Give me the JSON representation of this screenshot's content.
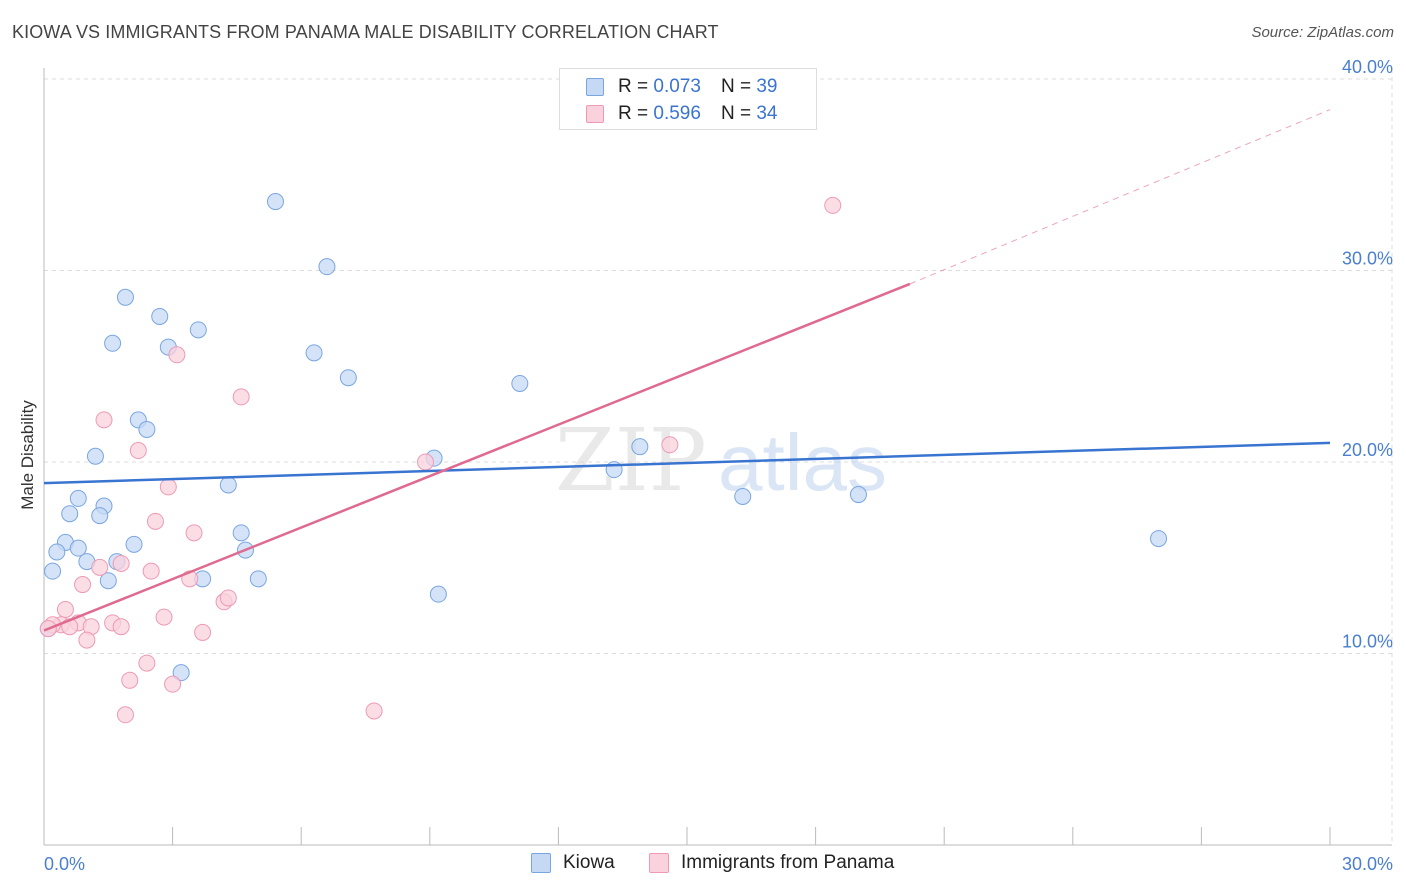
{
  "title": "KIOWA VS IMMIGRANTS FROM PANAMA MALE DISABILITY CORRELATION CHART",
  "source": "Source: ZipAtlas.com",
  "watermark": {
    "zip": "ZIP",
    "atlas": "atlas"
  },
  "legend": {
    "items": [
      {
        "r_label": "R =",
        "r_value": "0.073",
        "n_label": "N =",
        "n_value": "39"
      },
      {
        "r_label": "R =",
        "r_value": "0.596",
        "n_label": "N =",
        "n_value": "34"
      }
    ]
  },
  "bottom_legend": {
    "kiowa": "Kiowa",
    "panama": "Immigrants from Panama"
  },
  "colors": {
    "kiowa_fill": "#c5d9f5",
    "kiowa_stroke": "#7aa6e0",
    "kiowa_line": "#3874d0",
    "panama_fill": "#f9d2de",
    "panama_stroke": "#ee9ab4",
    "panama_line": "#e0698f",
    "tick_text": "#4a7fcf"
  },
  "chart_data": {
    "type": "scatter",
    "title": "KIOWA VS IMMIGRANTS FROM PANAMA MALE DISABILITY CORRELATION CHART",
    "xlabel": "",
    "ylabel": "Male Disability",
    "xlim": [
      0,
      30
    ],
    "ylim": [
      0,
      40
    ],
    "x_tick_labels": [
      "0.0%",
      "30.0%"
    ],
    "y_ticks": [
      10,
      20,
      30,
      40
    ],
    "y_tick_labels": [
      "10.0%",
      "20.0%",
      "30.0%",
      "40.0%"
    ],
    "grid": true,
    "legend_position": "top-center",
    "series": [
      {
        "name": "Kiowa",
        "r": 0.073,
        "n": 39,
        "trend": {
          "x0": 0,
          "y0": 18.9,
          "x1": 30,
          "y1": 21.0,
          "style": "solid"
        },
        "points": [
          [
            5.4,
            33.6
          ],
          [
            6.6,
            30.2
          ],
          [
            1.9,
            28.6
          ],
          [
            2.7,
            27.6
          ],
          [
            1.6,
            26.2
          ],
          [
            2.9,
            26.0
          ],
          [
            3.6,
            26.9
          ],
          [
            6.3,
            25.7
          ],
          [
            7.1,
            24.4
          ],
          [
            11.1,
            24.1
          ],
          [
            2.2,
            22.2
          ],
          [
            2.4,
            21.7
          ],
          [
            1.2,
            20.3
          ],
          [
            9.1,
            20.2
          ],
          [
            13.9,
            20.8
          ],
          [
            13.3,
            19.6
          ],
          [
            4.3,
            18.8
          ],
          [
            16.3,
            18.2
          ],
          [
            19.0,
            18.3
          ],
          [
            0.8,
            18.1
          ],
          [
            1.4,
            17.7
          ],
          [
            0.6,
            17.3
          ],
          [
            1.3,
            17.2
          ],
          [
            4.6,
            16.3
          ],
          [
            0.5,
            15.8
          ],
          [
            2.1,
            15.7
          ],
          [
            0.8,
            15.5
          ],
          [
            0.3,
            15.3
          ],
          [
            4.7,
            15.4
          ],
          [
            26.0,
            16.0
          ],
          [
            1.0,
            14.8
          ],
          [
            1.7,
            14.8
          ],
          [
            0.2,
            14.3
          ],
          [
            1.5,
            13.8
          ],
          [
            3.7,
            13.9
          ],
          [
            5.0,
            13.9
          ],
          [
            9.2,
            13.1
          ],
          [
            0.1,
            11.3
          ],
          [
            3.2,
            9.0
          ]
        ]
      },
      {
        "name": "Immigrants from Panama",
        "r": 0.596,
        "n": 34,
        "trend": {
          "x0": 0,
          "y0": 11.2,
          "x1": 20.2,
          "y1": 29.3,
          "dash_x1": 30,
          "dash_y1": 38.4,
          "style": "solid-then-dashed"
        },
        "points": [
          [
            18.4,
            33.4
          ],
          [
            3.1,
            25.6
          ],
          [
            4.6,
            23.4
          ],
          [
            1.4,
            22.2
          ],
          [
            2.2,
            20.6
          ],
          [
            14.6,
            20.9
          ],
          [
            8.9,
            20.0
          ],
          [
            2.9,
            18.7
          ],
          [
            2.6,
            16.9
          ],
          [
            3.5,
            16.3
          ],
          [
            2.5,
            14.3
          ],
          [
            3.4,
            13.9
          ],
          [
            1.3,
            14.5
          ],
          [
            1.8,
            14.7
          ],
          [
            0.9,
            13.6
          ],
          [
            4.2,
            12.7
          ],
          [
            4.3,
            12.9
          ],
          [
            0.5,
            12.3
          ],
          [
            2.8,
            11.9
          ],
          [
            0.8,
            11.6
          ],
          [
            0.4,
            11.5
          ],
          [
            0.6,
            11.4
          ],
          [
            1.1,
            11.4
          ],
          [
            1.6,
            11.6
          ],
          [
            1.8,
            11.4
          ],
          [
            0.2,
            11.5
          ],
          [
            0.1,
            11.3
          ],
          [
            3.7,
            11.1
          ],
          [
            1.0,
            10.7
          ],
          [
            2.4,
            9.5
          ],
          [
            2.0,
            8.6
          ],
          [
            3.0,
            8.4
          ],
          [
            7.7,
            7.0
          ],
          [
            1.9,
            6.8
          ]
        ]
      }
    ]
  }
}
